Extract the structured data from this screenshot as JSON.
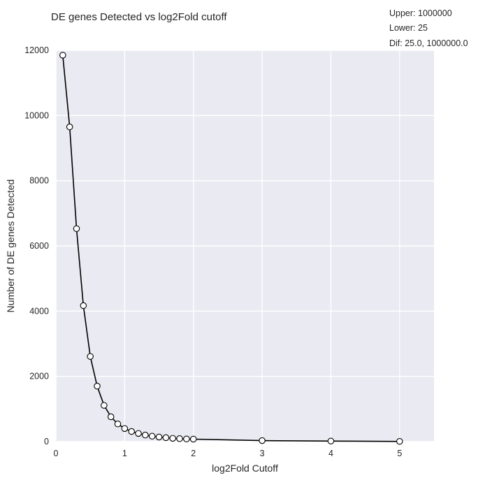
{
  "chart_data": {
    "type": "line",
    "title": "DE genes Detected vs log2Fold cutoff",
    "xlabel": "log2Fold Cutoff",
    "ylabel": "Number of DE genes Detected",
    "xlim": [
      0,
      5.5
    ],
    "ylim": [
      0,
      12000
    ],
    "xticks": [
      "0",
      "1",
      "2",
      "3",
      "4",
      "5"
    ],
    "yticks": [
      "0",
      "2000",
      "4000",
      "6000",
      "8000",
      "10000",
      "12000"
    ],
    "grid": true,
    "annotations": [
      "Upper: 1000000",
      "Lower: 25",
      "Dif: 25.0, 1000000.0"
    ],
    "series": [
      {
        "x": [
          0.1,
          0.2,
          0.3,
          0.4,
          0.5,
          0.6,
          0.7,
          0.8,
          0.9,
          1.0,
          1.1,
          1.2,
          1.3,
          1.4,
          1.5,
          1.6,
          1.7,
          1.8,
          1.9,
          2.0,
          3.0,
          4.0,
          5.0
        ],
        "y": [
          11850,
          9650,
          6530,
          4170,
          2610,
          1700,
          1110,
          760,
          540,
          400,
          310,
          250,
          200,
          165,
          140,
          120,
          100,
          90,
          80,
          75,
          30,
          15,
          5
        ]
      }
    ],
    "colors": {
      "plot_bg": "#eaeaf2",
      "grid": "#ffffff",
      "line": "#000000",
      "marker_fill": "#ffffff",
      "marker_edge": "#000000"
    }
  }
}
